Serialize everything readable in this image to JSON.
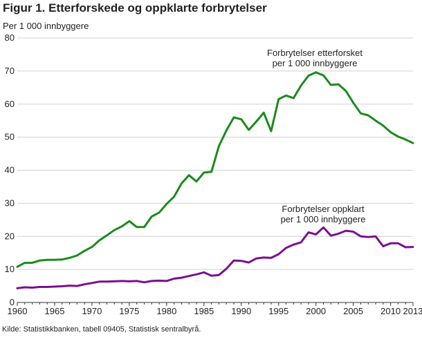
{
  "figure": {
    "title": "Figur 1. Etterforskede og oppklarte forbrytelser",
    "y_unit": "Per 1 000 innbyggere",
    "source": "Kilde: Statistikkbanken, tabell 09405, Statistisk sentralbyrå."
  },
  "chart_data": {
    "type": "line",
    "title": "Figur 1. Etterforskede og oppklarte forbrytelser",
    "ylabel": "Per 1 000 innbyggere",
    "xlabel": "",
    "ylim": [
      0,
      80
    ],
    "xlim": [
      1960,
      2013
    ],
    "y_ticks": [
      "0",
      "10",
      "20",
      "30",
      "40",
      "50",
      "60",
      "70",
      "80"
    ],
    "x_ticks": [
      "1960",
      "1965",
      "1970",
      "1975",
      "1980",
      "1985",
      "1990",
      "1995",
      "2000",
      "2005",
      "2010",
      "2013"
    ],
    "grid": true,
    "x": [
      1960,
      1961,
      1962,
      1963,
      1964,
      1965,
      1966,
      1967,
      1968,
      1969,
      1970,
      1971,
      1972,
      1973,
      1974,
      1975,
      1976,
      1977,
      1978,
      1979,
      1980,
      1981,
      1982,
      1983,
      1984,
      1985,
      1986,
      1987,
      1988,
      1989,
      1990,
      1991,
      1992,
      1993,
      1994,
      1995,
      1996,
      1997,
      1998,
      1999,
      2000,
      2001,
      2002,
      2003,
      2004,
      2005,
      2006,
      2007,
      2008,
      2009,
      2010,
      2011,
      2012,
      2013
    ],
    "series": [
      {
        "color": "#1a8a1a",
        "label_lines": [
          "Forbrytelser etterforsket",
          "per 1 000 innbyggere"
        ],
        "values": [
          10.8,
          12.0,
          12.0,
          12.7,
          12.9,
          12.9,
          13.0,
          13.5,
          14.2,
          15.6,
          16.8,
          18.8,
          20.3,
          21.9,
          23.0,
          24.6,
          22.8,
          22.8,
          26.0,
          27.2,
          29.8,
          32.0,
          36.0,
          38.5,
          36.6,
          39.3,
          39.5,
          47.3,
          52.0,
          56.0,
          55.4,
          52.2,
          54.7,
          57.4,
          51.8,
          61.5,
          62.6,
          61.8,
          65.6,
          68.6,
          69.6,
          68.7,
          65.8,
          66.0,
          64.0,
          60.4,
          57.2,
          56.6,
          55.0,
          53.5,
          51.5,
          50.2,
          49.3,
          48.2
        ]
      },
      {
        "color": "#7a0f8f",
        "label_lines": [
          "Forbrytelser oppklart",
          "per 1 000 innbyggere"
        ],
        "values": [
          4.3,
          4.6,
          4.5,
          4.7,
          4.7,
          4.8,
          4.9,
          5.1,
          5.0,
          5.5,
          5.9,
          6.3,
          6.3,
          6.4,
          6.5,
          6.4,
          6.5,
          6.1,
          6.5,
          6.6,
          6.5,
          7.2,
          7.5,
          8.0,
          8.5,
          9.1,
          8.1,
          8.3,
          10.2,
          12.7,
          12.6,
          12.1,
          13.3,
          13.6,
          13.5,
          14.6,
          16.5,
          17.5,
          18.2,
          21.2,
          20.6,
          22.7,
          20.2,
          20.8,
          21.7,
          21.4,
          20.0,
          19.8,
          20.0,
          17.0,
          17.9,
          17.9,
          16.7,
          16.8
        ]
      }
    ]
  }
}
